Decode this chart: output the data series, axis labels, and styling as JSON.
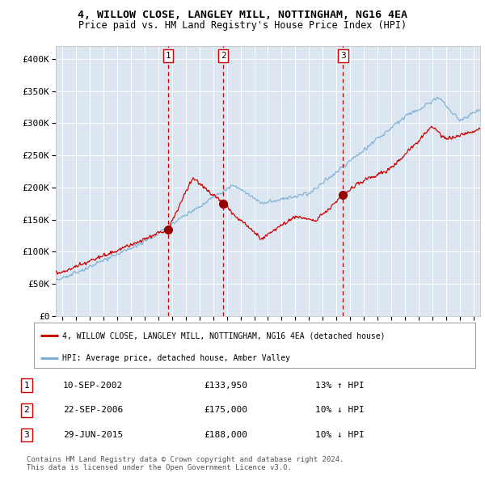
{
  "title_line1": "4, WILLOW CLOSE, LANGLEY MILL, NOTTINGHAM, NG16 4EA",
  "title_line2": "Price paid vs. HM Land Registry's House Price Index (HPI)",
  "background_color": "#ffffff",
  "plot_background_color": "#dce6f1",
  "grid_color": "#ffffff",
  "red_line_color": "#cc0000",
  "blue_line_color": "#7bafd4",
  "sale_marker_color": "#990000",
  "vline_color": "#cc0000",
  "ylim": [
    0,
    420000
  ],
  "yticks": [
    0,
    50000,
    100000,
    150000,
    200000,
    250000,
    300000,
    350000,
    400000
  ],
  "ytick_labels": [
    "£0",
    "£50K",
    "£100K",
    "£150K",
    "£200K",
    "£250K",
    "£300K",
    "£350K",
    "£400K"
  ],
  "sale_dates": [
    2002.71,
    2006.73,
    2015.49
  ],
  "sale_prices": [
    133950,
    175000,
    188000
  ],
  "sale_labels": [
    "1",
    "2",
    "3"
  ],
  "legend_red_label": "4, WILLOW CLOSE, LANGLEY MILL, NOTTINGHAM, NG16 4EA (detached house)",
  "legend_blue_label": "HPI: Average price, detached house, Amber Valley",
  "table_rows": [
    {
      "num": "1",
      "date": "10-SEP-2002",
      "price": "£133,950",
      "change": "13% ↑ HPI"
    },
    {
      "num": "2",
      "date": "22-SEP-2006",
      "price": "£175,000",
      "change": "10% ↓ HPI"
    },
    {
      "num": "3",
      "date": "29-JUN-2015",
      "price": "£188,000",
      "change": "10% ↓ HPI"
    }
  ],
  "footer": "Contains HM Land Registry data © Crown copyright and database right 2024.\nThis data is licensed under the Open Government Licence v3.0.",
  "xlim_start": 1994.5,
  "xlim_end": 2025.5
}
